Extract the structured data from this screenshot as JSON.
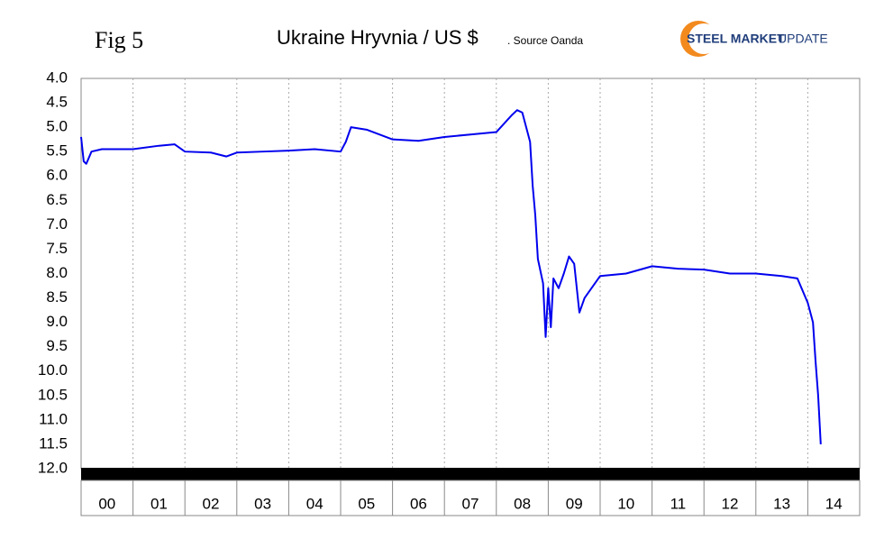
{
  "chart_data": {
    "type": "line",
    "title": "Ukraine Hryvnia / US $",
    "subtitle": ". Source Oanda",
    "annotations": [
      "Fig 5",
      "STEEL MARKET",
      "UPDATE"
    ],
    "xlim": [
      0,
      15
    ],
    "xticks": [
      {
        "value": 0.5,
        "label": "00"
      },
      {
        "value": 1.5,
        "label": "01"
      },
      {
        "value": 2.5,
        "label": "02"
      },
      {
        "value": 3.5,
        "label": "03"
      },
      {
        "value": 4.5,
        "label": "04"
      },
      {
        "value": 5.5,
        "label": "05"
      },
      {
        "value": 6.5,
        "label": "06"
      },
      {
        "value": 7.5,
        "label": "07"
      },
      {
        "value": 8.5,
        "label": "08"
      },
      {
        "value": 9.5,
        "label": "09"
      },
      {
        "value": 10.5,
        "label": "10"
      },
      {
        "value": 11.5,
        "label": "11"
      },
      {
        "value": 12.5,
        "label": "12"
      },
      {
        "value": 13.5,
        "label": "13"
      },
      {
        "value": 14.5,
        "label": "14"
      }
    ],
    "ylim": [
      4,
      12
    ],
    "y_inverted": true,
    "yticks": [
      {
        "value": 4,
        "label": "4.0"
      },
      4.5,
      {
        "value": 5,
        "label": "5.0"
      },
      5.5,
      {
        "value": 6,
        "label": "6.0"
      },
      6.5,
      {
        "value": 7,
        "label": "7.0"
      },
      7.5,
      {
        "value": 8,
        "label": "8.0"
      },
      8.5,
      {
        "value": 9,
        "label": "9.0"
      },
      9.5,
      {
        "value": 10,
        "label": "10.0"
      },
      10.5,
      {
        "value": 11,
        "label": "11.0"
      },
      11.5,
      {
        "value": 12,
        "label": "12.0"
      }
    ],
    "x": [
      0,
      0.05,
      0.1,
      0.2,
      0.4,
      1,
      1.5,
      1.8,
      2,
      2.5,
      2.8,
      3,
      3.5,
      4,
      4.5,
      5,
      5.1,
      5.2,
      5.5,
      6,
      6.5,
      7,
      7.5,
      8,
      8.3,
      8.4,
      8.5,
      8.65,
      8.7,
      8.75,
      8.8,
      8.9,
      8.95,
      9,
      9.05,
      9.1,
      9.2,
      9.3,
      9.4,
      9.5,
      9.6,
      9.7,
      9.9,
      10,
      10.5,
      11,
      11.5,
      12,
      12.5,
      13,
      13.5,
      13.8,
      14,
      14.1,
      14.15,
      14.2,
      14.25
    ],
    "series": [
      {
        "color": "#0000ee",
        "values": [
          5.2,
          5.7,
          5.75,
          5.5,
          5.45,
          5.45,
          5.38,
          5.35,
          5.5,
          5.52,
          5.6,
          5.52,
          5.5,
          5.48,
          5.45,
          5.5,
          5.3,
          5.0,
          5.05,
          5.25,
          5.28,
          5.2,
          5.15,
          5.1,
          4.75,
          4.65,
          4.7,
          5.3,
          6.2,
          6.8,
          7.7,
          8.2,
          9.3,
          8.3,
          9.1,
          8.1,
          8.3,
          8.0,
          7.65,
          7.8,
          8.8,
          8.5,
          8.2,
          8.05,
          8.0,
          7.85,
          7.9,
          7.92,
          8.0,
          8.0,
          8.05,
          8.1,
          8.6,
          9.0,
          9.8,
          10.5,
          11.5
        ]
      }
    ],
    "grid": true
  }
}
